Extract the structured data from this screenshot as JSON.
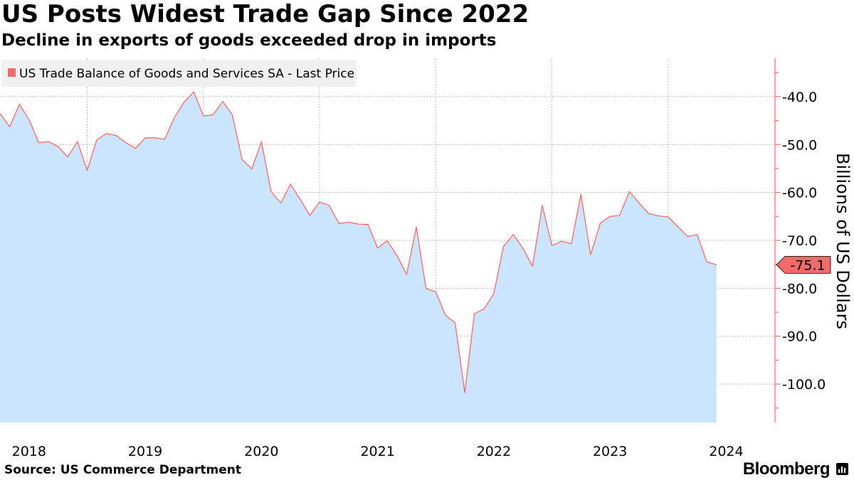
{
  "header": {
    "title": "US Posts Widest Trade Gap Since 2022",
    "subtitle": "Decline in exports of goods exceeded drop in imports"
  },
  "footer": {
    "source": "Source: US Commerce Department",
    "brand": "Bloomberg",
    "brand_icon": "bar-chart-icon"
  },
  "colors": {
    "line": "#f26b6b",
    "fill": "#cce5ff",
    "grid": "#bbbbbb",
    "axis": "#f26b6b",
    "legend_bg": "#f0f0f0",
    "label_bg": "#f26b6b"
  },
  "chart_data": {
    "type": "area",
    "title": "US Posts Widest Trade Gap Since 2022",
    "legend": [
      "US Trade Balance of Goods and Services SA - Last Price"
    ],
    "legend_position": "top-left",
    "ylabel": "Billions of US Dollars",
    "y_axis_side": "right",
    "ylim": [
      -108,
      -32
    ],
    "yticks": [
      -40,
      -50,
      -60,
      -70,
      -80,
      -90,
      -100
    ],
    "ytick_labels": [
      "-40.0",
      "-50.0",
      "-60.0",
      "-70.0",
      "-80.0",
      "-90.0",
      "-100.0"
    ],
    "grid": true,
    "xlim": [
      2017.75,
      2024.42
    ],
    "year_labels": [
      "2018",
      "2019",
      "2020",
      "2021",
      "2022",
      "2023",
      "2024"
    ],
    "x_gridlines": [
      2018.5,
      2019.5,
      2020.5,
      2021.5,
      2022.5,
      2023.5
    ],
    "last_value": -75.1,
    "last_value_label": "-75.1",
    "series": [
      {
        "name": "US Trade Balance of Goods and Services SA - Last Price",
        "points": [
          [
            2017.75,
            -43.5
          ],
          [
            2017.833,
            -46.3
          ],
          [
            2017.917,
            -41.6
          ],
          [
            2018.0,
            -44.8
          ],
          [
            2018.083,
            -49.6
          ],
          [
            2018.167,
            -49.4
          ],
          [
            2018.25,
            -50.4
          ],
          [
            2018.333,
            -52.6
          ],
          [
            2018.417,
            -49.4
          ],
          [
            2018.5,
            -55.4
          ],
          [
            2018.583,
            -49.0
          ],
          [
            2018.667,
            -47.7
          ],
          [
            2018.75,
            -48.1
          ],
          [
            2018.833,
            -49.6
          ],
          [
            2018.917,
            -50.8
          ],
          [
            2019.0,
            -48.6
          ],
          [
            2019.083,
            -48.6
          ],
          [
            2019.167,
            -48.9
          ],
          [
            2019.25,
            -44.4
          ],
          [
            2019.333,
            -41.2
          ],
          [
            2019.417,
            -39.0
          ],
          [
            2019.5,
            -44.0
          ],
          [
            2019.583,
            -43.8
          ],
          [
            2019.667,
            -41.0
          ],
          [
            2019.75,
            -43.8
          ],
          [
            2019.833,
            -53.1
          ],
          [
            2019.917,
            -55.1
          ],
          [
            2020.0,
            -49.4
          ],
          [
            2020.083,
            -59.8
          ],
          [
            2020.167,
            -62.2
          ],
          [
            2020.25,
            -58.3
          ],
          [
            2020.333,
            -61.4
          ],
          [
            2020.417,
            -64.8
          ],
          [
            2020.5,
            -62.0
          ],
          [
            2020.583,
            -62.7
          ],
          [
            2020.667,
            -66.5
          ],
          [
            2020.75,
            -66.2
          ],
          [
            2020.833,
            -66.6
          ],
          [
            2020.917,
            -66.7
          ],
          [
            2021.0,
            -71.6
          ],
          [
            2021.083,
            -70.1
          ],
          [
            2021.167,
            -73.2
          ],
          [
            2021.25,
            -77.1
          ],
          [
            2021.333,
            -67.2
          ],
          [
            2021.417,
            -80.1
          ],
          [
            2021.5,
            -80.7
          ],
          [
            2021.583,
            -85.6
          ],
          [
            2021.667,
            -87.2
          ],
          [
            2021.75,
            -101.8
          ],
          [
            2021.833,
            -85.3
          ],
          [
            2021.917,
            -84.3
          ],
          [
            2022.0,
            -81.1
          ],
          [
            2022.083,
            -71.3
          ],
          [
            2022.167,
            -68.8
          ],
          [
            2022.25,
            -71.6
          ],
          [
            2022.333,
            -75.4
          ],
          [
            2022.417,
            -62.7
          ],
          [
            2022.5,
            -71.1
          ],
          [
            2022.583,
            -70.2
          ],
          [
            2022.667,
            -70.7
          ],
          [
            2022.75,
            -60.4
          ],
          [
            2022.833,
            -73.0
          ],
          [
            2022.917,
            -66.4
          ],
          [
            2023.0,
            -65.0
          ],
          [
            2023.083,
            -64.8
          ],
          [
            2023.167,
            -59.8
          ],
          [
            2023.25,
            -62.2
          ],
          [
            2023.333,
            -64.4
          ],
          [
            2023.417,
            -64.9
          ],
          [
            2023.5,
            -65.1
          ],
          [
            2023.583,
            -67.1
          ],
          [
            2023.667,
            -69.2
          ],
          [
            2023.75,
            -68.8
          ],
          [
            2023.833,
            -74.5
          ],
          [
            2023.917,
            -75.1
          ]
        ]
      }
    ]
  }
}
